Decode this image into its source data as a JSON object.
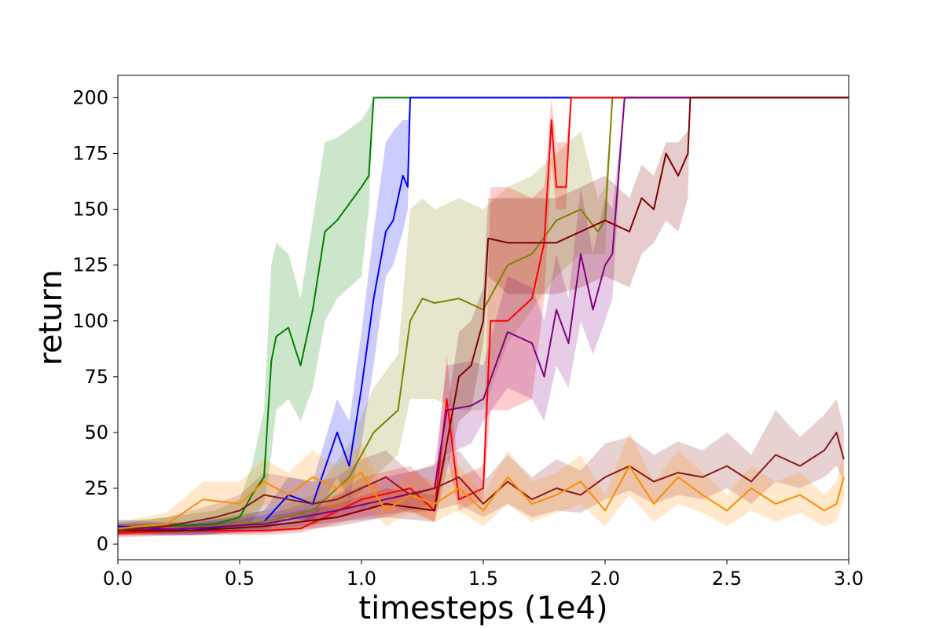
{
  "chart_data": {
    "type": "line",
    "xlabel": "timesteps (1e4)",
    "ylabel": "return",
    "xlim": [
      0.0,
      3.0
    ],
    "ylim": [
      -7,
      210
    ],
    "grid": false,
    "x_ticks": [
      "0.0",
      "0.5",
      "1.0",
      "1.5",
      "2.0",
      "2.5",
      "3.0"
    ],
    "y_ticks": [
      "0",
      "25",
      "50",
      "75",
      "100",
      "125",
      "150",
      "175",
      "200"
    ],
    "series": [
      {
        "color": "#008000",
        "x": [
          0.0,
          0.2,
          0.4,
          0.5,
          0.55,
          0.6,
          0.63,
          0.65,
          0.7,
          0.75,
          0.8,
          0.85,
          0.9,
          1.0,
          1.03,
          1.05,
          1.3,
          2.0,
          3.0
        ],
        "y": [
          7,
          8,
          9,
          12,
          22,
          30,
          82,
          93,
          97,
          80,
          105,
          140,
          145,
          160,
          165,
          200,
          200,
          200,
          200
        ],
        "lower": [
          5,
          5,
          5,
          6,
          10,
          18,
          40,
          60,
          65,
          55,
          70,
          100,
          110,
          120,
          150,
          200,
          200,
          200,
          200
        ],
        "upper": [
          10,
          12,
          15,
          20,
          35,
          60,
          125,
          135,
          130,
          110,
          145,
          180,
          182,
          190,
          195,
          200,
          200,
          200,
          200
        ]
      },
      {
        "color": "#0000ff",
        "x": [
          0.0,
          0.3,
          0.6,
          0.7,
          0.8,
          0.9,
          0.95,
          1.0,
          1.05,
          1.1,
          1.13,
          1.17,
          1.19,
          1.2,
          2.0,
          3.0
        ],
        "y": [
          8,
          6,
          10,
          22,
          18,
          50,
          35,
          70,
          110,
          140,
          145,
          165,
          160,
          200,
          200,
          200
        ],
        "lower": [
          5,
          4,
          6,
          12,
          10,
          30,
          20,
          45,
          80,
          120,
          125,
          140,
          150,
          200,
          200,
          200
        ],
        "upper": [
          11,
          9,
          15,
          30,
          28,
          65,
          55,
          95,
          140,
          180,
          185,
          190,
          190,
          200,
          200,
          200
        ]
      },
      {
        "color": "#808000",
        "x": [
          0.0,
          0.3,
          0.6,
          0.8,
          0.95,
          1.05,
          1.15,
          1.2,
          1.25,
          1.3,
          1.4,
          1.5,
          1.6,
          1.7,
          1.8,
          1.9,
          1.97,
          2.0,
          2.03,
          3.0
        ],
        "y": [
          6,
          7,
          10,
          15,
          30,
          50,
          60,
          100,
          110,
          108,
          110,
          105,
          125,
          130,
          145,
          150,
          140,
          145,
          200,
          200
        ],
        "lower": [
          4,
          5,
          6,
          8,
          18,
          30,
          40,
          65,
          65,
          65,
          60,
          60,
          90,
          105,
          120,
          130,
          130,
          130,
          200,
          200
        ],
        "upper": [
          9,
          10,
          15,
          22,
          45,
          70,
          85,
          150,
          155,
          150,
          155,
          150,
          160,
          165,
          175,
          185,
          155,
          160,
          200,
          200
        ]
      },
      {
        "color": "#ff0000",
        "x": [
          0.0,
          0.3,
          0.6,
          0.75,
          0.85,
          1.0,
          1.2,
          1.3,
          1.35,
          1.4,
          1.5,
          1.53,
          1.6,
          1.7,
          1.75,
          1.78,
          1.8,
          1.84,
          1.86,
          3.0
        ],
        "y": [
          5,
          6,
          6,
          7,
          12,
          20,
          25,
          15,
          65,
          20,
          25,
          100,
          100,
          110,
          135,
          190,
          160,
          160,
          200,
          200
        ],
        "lower": [
          3,
          4,
          4,
          5,
          8,
          12,
          15,
          10,
          40,
          15,
          20,
          60,
          60,
          65,
          110,
          170,
          150,
          150,
          200,
          200
        ],
        "upper": [
          8,
          9,
          9,
          10,
          18,
          30,
          35,
          25,
          85,
          30,
          35,
          160,
          160,
          155,
          160,
          200,
          180,
          180,
          200,
          200
        ]
      },
      {
        "color": "#800080",
        "x": [
          0.0,
          0.3,
          0.6,
          0.9,
          1.1,
          1.3,
          1.35,
          1.45,
          1.5,
          1.6,
          1.7,
          1.75,
          1.8,
          1.85,
          1.9,
          1.95,
          2.0,
          2.03,
          2.08,
          3.0
        ],
        "y": [
          6,
          7,
          9,
          15,
          20,
          25,
          60,
          62,
          65,
          95,
          90,
          75,
          105,
          90,
          130,
          105,
          125,
          130,
          200,
          200
        ],
        "lower": [
          4,
          4,
          6,
          10,
          12,
          18,
          40,
          45,
          55,
          70,
          65,
          55,
          80,
          70,
          100,
          85,
          100,
          110,
          200,
          200
        ],
        "upper": [
          9,
          10,
          13,
          22,
          30,
          35,
          80,
          82,
          80,
          120,
          115,
          100,
          130,
          110,
          160,
          130,
          155,
          150,
          200,
          200
        ]
      },
      {
        "color": "#800000",
        "x": [
          0.0,
          0.3,
          0.6,
          0.9,
          1.1,
          1.3,
          1.4,
          1.45,
          1.5,
          1.52,
          1.6,
          1.8,
          1.9,
          2.0,
          2.1,
          2.15,
          2.2,
          2.25,
          2.3,
          2.34,
          2.35,
          3.0
        ],
        "y": [
          6,
          6,
          8,
          12,
          18,
          15,
          75,
          80,
          100,
          137,
          135,
          135,
          140,
          145,
          140,
          155,
          150,
          175,
          165,
          175,
          200,
          200
        ],
        "lower": [
          4,
          4,
          5,
          8,
          12,
          10,
          55,
          60,
          90,
          120,
          112,
          112,
          115,
          120,
          115,
          130,
          135,
          145,
          140,
          155,
          200,
          200
        ],
        "upper": [
          9,
          9,
          12,
          18,
          25,
          22,
          95,
          100,
          115,
          155,
          155,
          155,
          160,
          165,
          155,
          170,
          165,
          180,
          180,
          185,
          200,
          200
        ]
      },
      {
        "color": "#8b1a1a",
        "x": [
          0.0,
          0.2,
          0.4,
          0.5,
          0.6,
          0.7,
          0.8,
          0.9,
          1.0,
          1.1,
          1.2,
          1.3,
          1.4,
          1.5,
          1.6,
          1.7,
          1.8,
          1.9,
          2.0,
          2.1,
          2.2,
          2.3,
          2.4,
          2.5,
          2.6,
          2.7,
          2.8,
          2.9,
          2.95,
          2.98
        ],
        "y": [
          6,
          8,
          12,
          15,
          22,
          20,
          18,
          20,
          25,
          30,
          22,
          25,
          30,
          18,
          28,
          20,
          25,
          22,
          30,
          35,
          28,
          32,
          30,
          35,
          28,
          40,
          35,
          42,
          50,
          38
        ],
        "lower": [
          4,
          5,
          7,
          10,
          12,
          12,
          10,
          12,
          15,
          18,
          14,
          15,
          18,
          12,
          18,
          12,
          15,
          14,
          20,
          24,
          18,
          22,
          20,
          25,
          18,
          28,
          25,
          30,
          35,
          28
        ],
        "upper": [
          9,
          12,
          18,
          22,
          32,
          30,
          28,
          30,
          38,
          42,
          32,
          36,
          42,
          28,
          40,
          30,
          38,
          33,
          45,
          48,
          40,
          46,
          42,
          50,
          40,
          60,
          48,
          58,
          65,
          52
        ]
      },
      {
        "color": "#ff8c00",
        "x": [
          0.0,
          0.2,
          0.35,
          0.5,
          0.6,
          0.7,
          0.8,
          0.9,
          1.0,
          1.1,
          1.2,
          1.3,
          1.4,
          1.5,
          1.6,
          1.7,
          1.8,
          1.9,
          2.0,
          2.1,
          2.2,
          2.3,
          2.4,
          2.5,
          2.6,
          2.7,
          2.8,
          2.9,
          2.95,
          2.98
        ],
        "y": [
          7,
          9,
          20,
          18,
          28,
          22,
          30,
          25,
          32,
          15,
          22,
          18,
          25,
          15,
          30,
          18,
          22,
          28,
          15,
          35,
          18,
          30,
          22,
          15,
          25,
          18,
          22,
          15,
          18,
          30
        ],
        "lower": [
          4,
          5,
          12,
          10,
          18,
          14,
          18,
          15,
          20,
          8,
          14,
          10,
          15,
          8,
          18,
          10,
          14,
          18,
          8,
          22,
          10,
          18,
          14,
          8,
          15,
          10,
          14,
          8,
          10,
          20
        ],
        "upper": [
          10,
          14,
          28,
          28,
          38,
          32,
          42,
          35,
          45,
          22,
          32,
          28,
          35,
          22,
          42,
          28,
          32,
          40,
          22,
          50,
          28,
          42,
          32,
          22,
          35,
          28,
          32,
          22,
          28,
          42
        ]
      }
    ]
  }
}
